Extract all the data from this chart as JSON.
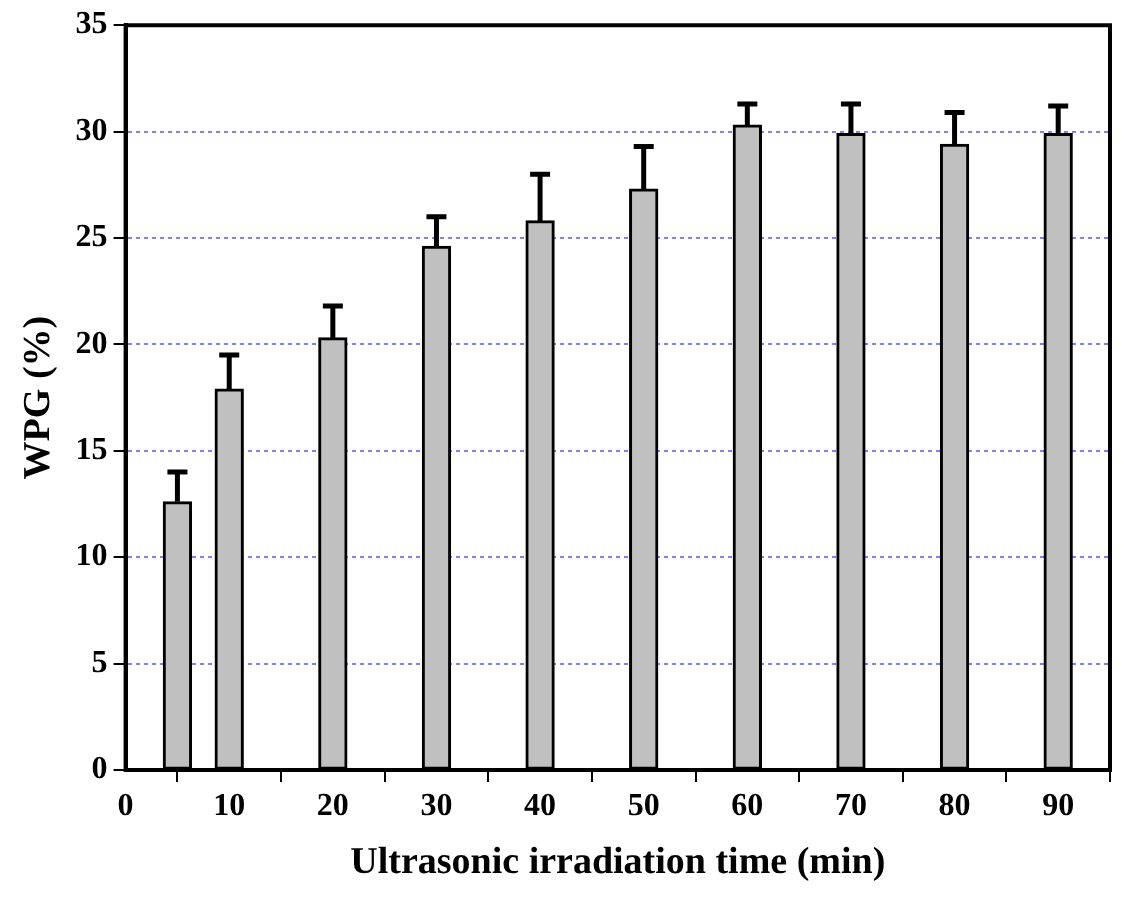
{
  "chart_data": {
    "type": "bar",
    "xlabel": "Ultrasonic irradiation time (min)",
    "ylabel": "WPG (%)",
    "x": [
      5,
      10,
      20,
      30,
      40,
      50,
      60,
      70,
      80,
      90
    ],
    "values": [
      12.6,
      17.9,
      20.3,
      24.6,
      25.8,
      27.3,
      30.3,
      29.9,
      29.4,
      29.9
    ],
    "errors": [
      [
        12.6,
        14.0
      ],
      [
        17.9,
        19.5
      ],
      [
        20.3,
        21.8
      ],
      [
        24.6,
        26.0
      ],
      [
        25.8,
        28.0
      ],
      [
        27.3,
        29.3
      ],
      [
        30.3,
        31.3
      ],
      [
        29.9,
        31.3
      ],
      [
        29.4,
        30.9
      ],
      [
        29.9,
        31.2
      ]
    ],
    "color": "#c0c0c0",
    "xlim": [
      0,
      95
    ],
    "xticks": [
      0,
      10,
      20,
      30,
      40,
      50,
      60,
      70,
      80,
      90
    ],
    "ylim": [
      0,
      35
    ],
    "yticks": [
      0,
      5,
      10,
      15,
      20,
      25,
      30,
      35
    ],
    "grid": "y",
    "legend": false
  }
}
